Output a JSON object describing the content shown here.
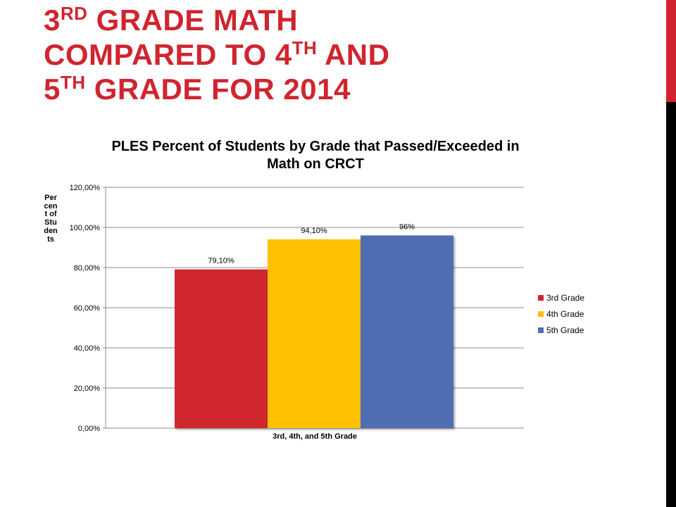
{
  "slide": {
    "title_line1_pre": "3",
    "title_line1_sup": "rd",
    "title_line1_post": " grade math",
    "title_line2_pre": "compared to 4",
    "title_line2_sup": "th",
    "title_line2_post": " and",
    "title_line3_pre": "5",
    "title_line3_sup": "th",
    "title_line3_post": " grade for 2014",
    "accent_colors": [
      "#d0252f",
      "#000000"
    ]
  },
  "chart_data": {
    "type": "bar",
    "title": "PLES Percent of Students by Grade that Passed/Exceeded in Math on CRCT",
    "xlabel": "3rd, 4th, and 5th Grade",
    "ylabel": "Percent of Students",
    "categories": [
      "3rd, 4th, and 5th Grade"
    ],
    "ylim": [
      0,
      120
    ],
    "yticks": [
      "0,00%",
      "20,00%",
      "40,00%",
      "60,00%",
      "80,00%",
      "100,00%",
      "120,00%"
    ],
    "grid": true,
    "legend_position": "right",
    "series": [
      {
        "name": "3rd Grade",
        "values": [
          79.1
        ],
        "label": "79,10%",
        "color": "#d0252f"
      },
      {
        "name": "4th Grade",
        "values": [
          94.1
        ],
        "label": "94,10%",
        "color": "#ffc000"
      },
      {
        "name": "5th Grade",
        "values": [
          96
        ],
        "label": "96%",
        "color": "#4f6db3"
      }
    ]
  }
}
